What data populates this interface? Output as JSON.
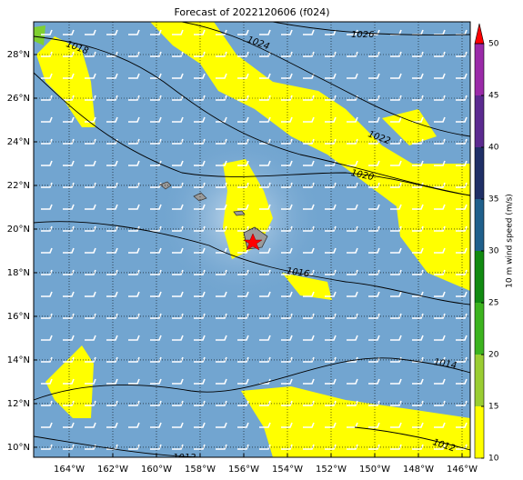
{
  "chart_data": {
    "type": "map",
    "title": "Forecast of 2022120606 (f024)",
    "xlim": [
      -165.625,
      -145.625
    ],
    "ylim": [
      9.54,
      29.5
    ],
    "xticks": [
      {
        "value": -164,
        "label": "164°W"
      },
      {
        "value": -162,
        "label": "162°W"
      },
      {
        "value": -160,
        "label": "160°W"
      },
      {
        "value": -158,
        "label": "158°W"
      },
      {
        "value": -156,
        "label": "156°W"
      },
      {
        "value": -154,
        "label": "154°W"
      },
      {
        "value": -152,
        "label": "152°W"
      },
      {
        "value": -150,
        "label": "150°W"
      },
      {
        "value": -148,
        "label": "148°W"
      },
      {
        "value": -146,
        "label": "146°W"
      }
    ],
    "yticks": [
      {
        "value": 10,
        "label": "10°N"
      },
      {
        "value": 12,
        "label": "12°N"
      },
      {
        "value": 14,
        "label": "14°N"
      },
      {
        "value": 16,
        "label": "16°N"
      },
      {
        "value": 18,
        "label": "18°N"
      },
      {
        "value": 20,
        "label": "20°N"
      },
      {
        "value": 22,
        "label": "22°N"
      },
      {
        "value": 24,
        "label": "24°N"
      },
      {
        "value": 26,
        "label": "26°N"
      },
      {
        "value": 28,
        "label": "28°N"
      }
    ],
    "grid": true,
    "contour_labels": [
      "1018",
      "1024",
      "1026",
      "1022",
      "1020",
      "1016",
      "1014",
      "1012",
      "1012"
    ],
    "colorbar": {
      "label": "10 m wind speed (m/s)",
      "levels": [
        10,
        15,
        20,
        25,
        30,
        35,
        40,
        45,
        50
      ],
      "colors": [
        "#ffff00",
        "#9acd32",
        "#3cb31e",
        "#118a11",
        "#1f5f8b",
        "#1f2f66",
        "#5b2a8f",
        "#9a2aa8"
      ],
      "extend_color": "#ff0000"
    }
  }
}
